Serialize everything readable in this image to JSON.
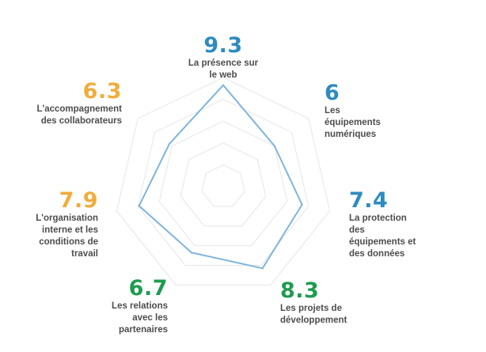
{
  "chart_data": {
    "type": "radar",
    "scale_max": 10,
    "rings": 5,
    "axes": [
      {
        "label": "La présence sur\nle web",
        "value": 9.3,
        "value_text": "9.3",
        "color": "#2e8bc0"
      },
      {
        "label": "Les\néquipements\nnumériques",
        "value": 6,
        "value_text": "6",
        "color": "#2e8bc0"
      },
      {
        "label": "La protection\ndes\néquipements et\ndes données",
        "value": 7.4,
        "value_text": "7.4",
        "color": "#2e8bc0"
      },
      {
        "label": "Les projets de\ndéveloppement",
        "value": 8.3,
        "value_text": "8.3",
        "color": "#1e9b4f"
      },
      {
        "label": "Les relations\navec les\npartenaires",
        "value": 6.7,
        "value_text": "6.7",
        "color": "#1e9b4f"
      },
      {
        "label": "L'organisation\ninterne et les\nconditions de\ntravail",
        "value": 7.9,
        "value_text": "7.9",
        "color": "#f0ad3c"
      },
      {
        "label": "L'accompagnement\ndes collaborateurs",
        "value": 6.3,
        "value_text": "6.3",
        "color": "#f0ad3c"
      }
    ],
    "line_color": "#7db4e0",
    "grid_color": "#e6e6e6"
  }
}
